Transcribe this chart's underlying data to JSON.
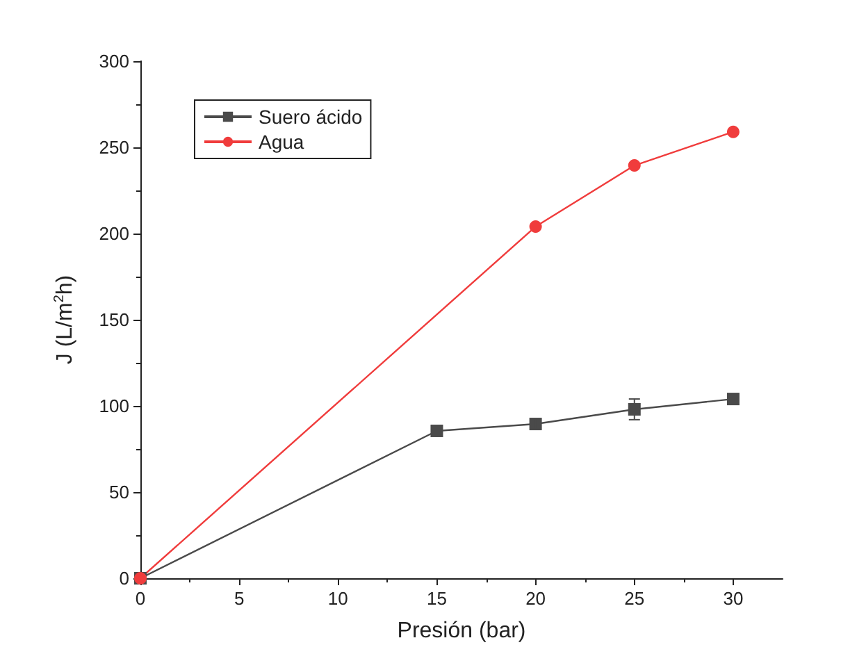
{
  "chart_data": {
    "type": "line",
    "xlabel": "Presión (bar)",
    "ylabel": "J (L/m$^{2}$h)",
    "xlim": [
      0,
      32.5
    ],
    "xticks": [
      0,
      5,
      10,
      15,
      20,
      25,
      30
    ],
    "ylim": [
      0,
      300
    ],
    "yticks": [
      0,
      50,
      100,
      150,
      200,
      250,
      300
    ],
    "grid": false,
    "legend": "top left",
    "line_style": "solid",
    "series": [
      {
        "name": "Suero ácido",
        "color": "#4a4a4a",
        "marker": "square",
        "x": [
          0,
          15,
          20,
          25,
          30
        ],
        "values": [
          0,
          85.5,
          89.5,
          98,
          104
        ],
        "errors": [
          null,
          null,
          3,
          6,
          null
        ]
      },
      {
        "name": "Agua",
        "color": "#f03c3c",
        "marker": "circle",
        "x": [
          0,
          20,
          25,
          30
        ],
        "values": [
          0,
          204,
          239.5,
          259
        ]
      }
    ]
  }
}
